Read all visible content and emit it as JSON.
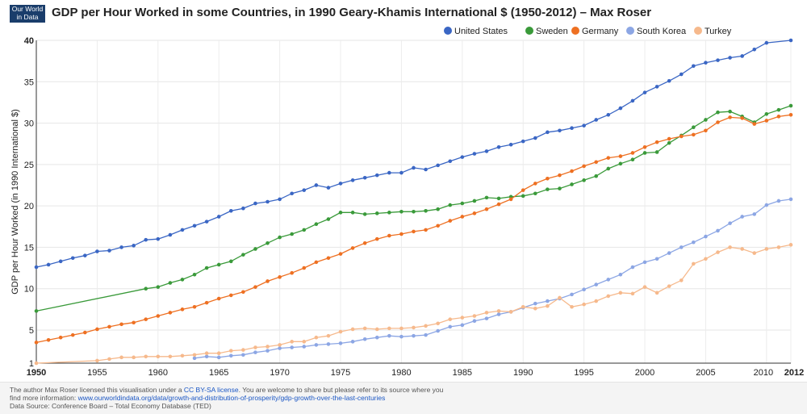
{
  "header": {
    "logo_line1": "Our World",
    "logo_line2": "in Data",
    "title": "GDP per Hour Worked in some Countries, in 1990 Geary-Khamis International $ (1950-2012) – Max Roser"
  },
  "footer": {
    "line1_prefix": "The author Max Roser licensed this visualisation under a ",
    "license_link": "CC BY-SA license",
    "line1_suffix": ". You are welcome to share but please refer to its source where you",
    "line2_prefix": "find more information: ",
    "info_link": "www.ourworldindata.org/data/growth-and-distribution-of-prosperity/gdp-growth-over-the-last-centuries",
    "line3": "Data Source: Conference Board – Total Economy Database (TED)"
  },
  "chart_data": {
    "type": "line",
    "title": "GDP per Hour Worked in some Countries, in 1990 Geary-Khamis International $ (1950-2012) – Max Roser",
    "xlabel": "",
    "ylabel": "GDP per Hour Worked (in 1990 International $)",
    "xlim": [
      1950,
      2012
    ],
    "ylim": [
      1,
      40
    ],
    "x_ticks": [
      "1950",
      "1955",
      "1960",
      "1965",
      "1970",
      "1975",
      "1980",
      "1985",
      "1990",
      "1995",
      "2000",
      "2005",
      "2010",
      "2012"
    ],
    "y_ticks": [
      "1",
      "5",
      "10",
      "15",
      "20",
      "25",
      "30",
      "35",
      "40"
    ],
    "grid": true,
    "legend_position": "top-right",
    "series": [
      {
        "name": "United States",
        "color": "#3a66c4",
        "x": [
          1950,
          1951,
          1952,
          1953,
          1954,
          1955,
          1956,
          1957,
          1958,
          1959,
          1960,
          1961,
          1962,
          1963,
          1964,
          1965,
          1966,
          1967,
          1968,
          1969,
          1970,
          1971,
          1972,
          1973,
          1974,
          1975,
          1976,
          1977,
          1978,
          1979,
          1980,
          1981,
          1982,
          1983,
          1984,
          1985,
          1986,
          1987,
          1988,
          1989,
          1990,
          1991,
          1992,
          1993,
          1994,
          1995,
          1996,
          1997,
          1998,
          1999,
          2000,
          2001,
          2002,
          2003,
          2004,
          2005,
          2006,
          2007,
          2008,
          2009,
          2010,
          2012
        ],
        "values": [
          12.6,
          12.9,
          13.3,
          13.7,
          14.0,
          14.5,
          14.6,
          15.0,
          15.2,
          15.9,
          16.0,
          16.5,
          17.1,
          17.6,
          18.1,
          18.7,
          19.4,
          19.7,
          20.3,
          20.5,
          20.8,
          21.5,
          21.9,
          22.5,
          22.2,
          22.7,
          23.1,
          23.4,
          23.7,
          24.0,
          24.0,
          24.6,
          24.4,
          24.9,
          25.4,
          25.9,
          26.3,
          26.6,
          27.1,
          27.4,
          27.8,
          28.2,
          28.9,
          29.1,
          29.4,
          29.7,
          30.4,
          31.0,
          31.8,
          32.7,
          33.7,
          34.4,
          35.1,
          35.9,
          36.9,
          37.3,
          37.6,
          37.9,
          38.1,
          38.9,
          39.7,
          40.0
        ]
      },
      {
        "name": "Sweden",
        "color": "#3a9a3a",
        "x": [
          1950,
          1959,
          1960,
          1961,
          1962,
          1963,
          1964,
          1965,
          1966,
          1967,
          1968,
          1969,
          1970,
          1971,
          1972,
          1973,
          1974,
          1975,
          1976,
          1977,
          1978,
          1979,
          1980,
          1981,
          1982,
          1983,
          1984,
          1985,
          1986,
          1987,
          1988,
          1989,
          1990,
          1991,
          1992,
          1993,
          1994,
          1995,
          1996,
          1997,
          1998,
          1999,
          2000,
          2001,
          2002,
          2003,
          2004,
          2005,
          2006,
          2007,
          2008,
          2009,
          2010,
          2011,
          2012
        ],
        "values": [
          7.3,
          10.0,
          10.2,
          10.7,
          11.1,
          11.7,
          12.5,
          12.9,
          13.3,
          14.1,
          14.8,
          15.5,
          16.2,
          16.6,
          17.1,
          17.8,
          18.4,
          19.2,
          19.2,
          19.0,
          19.1,
          19.2,
          19.3,
          19.3,
          19.4,
          19.6,
          20.1,
          20.3,
          20.6,
          21.0,
          20.9,
          21.1,
          21.2,
          21.5,
          22.0,
          22.1,
          22.6,
          23.1,
          23.6,
          24.5,
          25.1,
          25.6,
          26.4,
          26.5,
          27.6,
          28.5,
          29.5,
          30.4,
          31.3,
          31.4,
          30.8,
          30.1,
          31.1,
          31.6,
          32.1
        ]
      },
      {
        "name": "Germany",
        "color": "#ee7022",
        "x": [
          1950,
          1951,
          1952,
          1953,
          1954,
          1955,
          1956,
          1957,
          1958,
          1959,
          1960,
          1961,
          1962,
          1963,
          1964,
          1965,
          1966,
          1967,
          1968,
          1969,
          1970,
          1971,
          1972,
          1973,
          1974,
          1975,
          1976,
          1977,
          1978,
          1979,
          1980,
          1981,
          1982,
          1983,
          1984,
          1985,
          1986,
          1987,
          1988,
          1989,
          1990,
          1991,
          1992,
          1993,
          1994,
          1995,
          1996,
          1997,
          1998,
          1999,
          2000,
          2001,
          2002,
          2003,
          2004,
          2005,
          2006,
          2007,
          2008,
          2009,
          2010,
          2011,
          2012
        ],
        "values": [
          3.5,
          3.8,
          4.1,
          4.4,
          4.7,
          5.1,
          5.4,
          5.7,
          5.9,
          6.3,
          6.7,
          7.1,
          7.5,
          7.8,
          8.3,
          8.8,
          9.2,
          9.6,
          10.2,
          10.9,
          11.4,
          11.9,
          12.5,
          13.2,
          13.7,
          14.2,
          14.9,
          15.5,
          16.0,
          16.4,
          16.6,
          16.9,
          17.1,
          17.6,
          18.2,
          18.7,
          19.1,
          19.6,
          20.2,
          20.8,
          21.9,
          22.7,
          23.3,
          23.7,
          24.2,
          24.8,
          25.3,
          25.8,
          26.0,
          26.4,
          27.1,
          27.7,
          28.1,
          28.4,
          28.6,
          29.1,
          30.1,
          30.7,
          30.6,
          29.9,
          30.3,
          30.8,
          31.0
        ]
      },
      {
        "name": "South Korea",
        "color": "#8ca6e4",
        "x": [
          1963,
          1964,
          1965,
          1966,
          1967,
          1968,
          1969,
          1970,
          1971,
          1972,
          1973,
          1974,
          1975,
          1976,
          1977,
          1978,
          1979,
          1980,
          1981,
          1982,
          1983,
          1984,
          1985,
          1986,
          1987,
          1988,
          1989,
          1990,
          1991,
          1992,
          1993,
          1994,
          1995,
          1996,
          1997,
          1998,
          1999,
          2000,
          2001,
          2002,
          2003,
          2004,
          2005,
          2006,
          2007,
          2008,
          2009,
          2010,
          2011,
          2012
        ],
        "values": [
          1.6,
          1.8,
          1.7,
          1.9,
          2.0,
          2.3,
          2.5,
          2.8,
          2.9,
          3.0,
          3.2,
          3.3,
          3.4,
          3.6,
          3.9,
          4.1,
          4.3,
          4.2,
          4.3,
          4.4,
          4.9,
          5.4,
          5.6,
          6.1,
          6.4,
          6.9,
          7.2,
          7.7,
          8.2,
          8.5,
          8.8,
          9.3,
          9.9,
          10.5,
          11.1,
          11.7,
          12.6,
          13.2,
          13.6,
          14.3,
          15.0,
          15.6,
          16.3,
          17.0,
          17.9,
          18.7,
          19.0,
          20.1,
          20.6,
          20.8
        ]
      },
      {
        "name": "Turkey",
        "color": "#f6b98c",
        "x": [
          1950,
          1955,
          1956,
          1957,
          1958,
          1959,
          1960,
          1961,
          1962,
          1963,
          1964,
          1965,
          1966,
          1967,
          1968,
          1969,
          1970,
          1971,
          1972,
          1973,
          1974,
          1975,
          1976,
          1977,
          1978,
          1979,
          1980,
          1981,
          1982,
          1983,
          1984,
          1985,
          1986,
          1987,
          1988,
          1989,
          1990,
          1991,
          1992,
          1993,
          1994,
          1995,
          1996,
          1997,
          1998,
          1999,
          2000,
          2001,
          2002,
          2003,
          2004,
          2005,
          2006,
          2007,
          2008,
          2009,
          2010,
          2011,
          2012
        ],
        "values": [
          1.0,
          1.3,
          1.5,
          1.7,
          1.7,
          1.8,
          1.8,
          1.8,
          1.9,
          2.0,
          2.2,
          2.2,
          2.5,
          2.6,
          2.9,
          3.0,
          3.2,
          3.6,
          3.6,
          4.1,
          4.3,
          4.8,
          5.1,
          5.2,
          5.1,
          5.2,
          5.2,
          5.3,
          5.5,
          5.8,
          6.3,
          6.5,
          6.7,
          7.1,
          7.3,
          7.2,
          7.8,
          7.6,
          7.9,
          8.9,
          7.8,
          8.1,
          8.5,
          9.1,
          9.5,
          9.4,
          10.2,
          9.5,
          10.3,
          11.0,
          13.0,
          13.6,
          14.4,
          15.0,
          14.8,
          14.3,
          14.8,
          15.0,
          15.3
        ]
      }
    ]
  }
}
